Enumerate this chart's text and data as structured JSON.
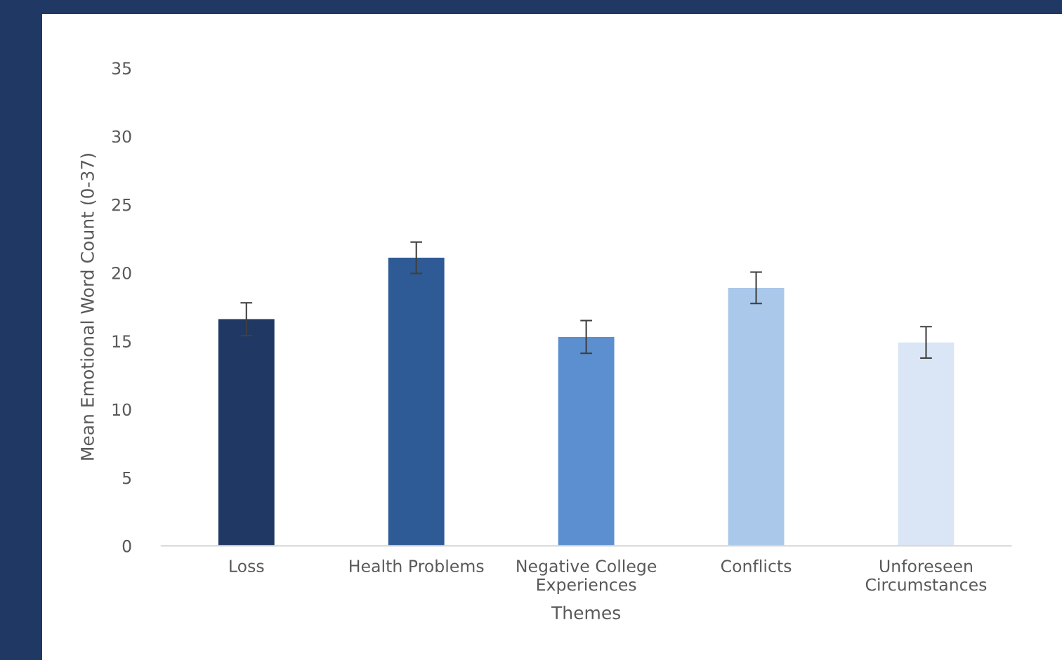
{
  "chart_data": {
    "type": "bar",
    "xlabel": "Themes",
    "ylabel": "Mean Emotional Word Count (0-37)",
    "categories": [
      "Loss",
      "Health Problems",
      "Negative College\nExperiences",
      "Conflicts",
      "Unforeseen\nCircumstances"
    ],
    "values": [
      16.6,
      21.1,
      15.3,
      18.9,
      14.9
    ],
    "errors": [
      1.2,
      1.15,
      1.2,
      1.15,
      1.15
    ],
    "colors": [
      "#1f3864",
      "#2e5a96",
      "#5b8fd0",
      "#a9c8ea",
      "#dae6f5"
    ],
    "ylim": [
      0,
      35
    ],
    "yticks": [
      0,
      5,
      10,
      15,
      20,
      25,
      30,
      35
    ],
    "grid": false,
    "legend": false
  }
}
